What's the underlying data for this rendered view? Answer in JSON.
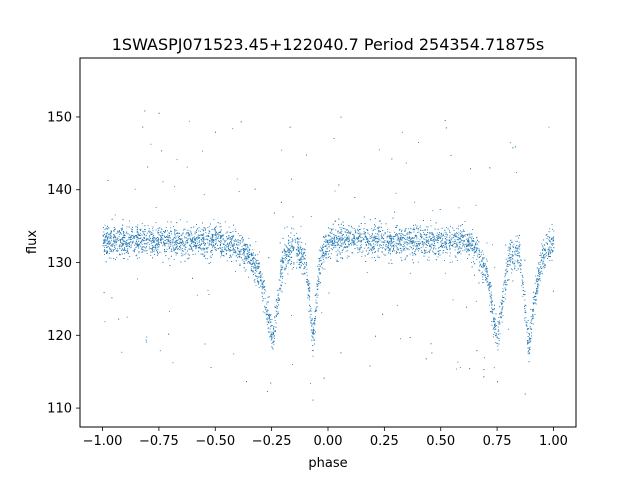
{
  "chart_data": {
    "type": "scatter",
    "title": "1SWASPJ071523.45+122040.7 Period 254354.71875s",
    "xlabel": "phase",
    "ylabel": "flux",
    "xlim": [
      -1.1,
      1.1
    ],
    "ylim": [
      107.4,
      158.1
    ],
    "xticks": [
      -1.0,
      -0.75,
      -0.5,
      -0.25,
      0.0,
      0.25,
      0.5,
      0.75,
      1.0
    ],
    "xtick_labels": [
      "−1.00",
      "−0.75",
      "−0.50",
      "−0.25",
      "0.00",
      "0.25",
      "0.50",
      "0.75",
      "1.00"
    ],
    "yticks": [
      110,
      120,
      130,
      140,
      150
    ],
    "ytick_labels": [
      "110",
      "120",
      "130",
      "140",
      "150"
    ],
    "grid": false,
    "legend": "none",
    "marker_color": "#1f77b4",
    "series": [
      {
        "description_points": "phase-folded eclipsing binary light curve",
        "baseline_flux": 133,
        "primary_eclipse_phase": [
          -0.25,
          0.75
        ],
        "primary_eclipse_min_flux": 119.5,
        "secondary_eclipse_phase": [
          -0.07,
          0.89
        ],
        "secondary_eclipse_min_flux": 118.5,
        "x": [
          -1.0,
          -0.9,
          -0.8,
          -0.7,
          -0.6,
          -0.5,
          -0.4,
          -0.35,
          -0.3,
          -0.27,
          -0.25,
          -0.23,
          -0.2,
          -0.15,
          -0.1,
          -0.08,
          -0.07,
          -0.06,
          -0.04,
          0.0,
          0.1,
          0.2,
          0.3,
          0.4,
          0.5,
          0.6,
          0.65,
          0.7,
          0.73,
          0.75,
          0.77,
          0.8,
          0.85,
          0.87,
          0.89,
          0.91,
          0.95,
          1.0
        ],
        "y": [
          133,
          133,
          133,
          133,
          133,
          133,
          132,
          131,
          128,
          123,
          119.5,
          123,
          131,
          132,
          130,
          124,
          118.5,
          122,
          130,
          133,
          133,
          133,
          133,
          133,
          133,
          133,
          132,
          129,
          123,
          119.5,
          124,
          131,
          131,
          124,
          118.5,
          124,
          131,
          133
        ]
      }
    ]
  }
}
